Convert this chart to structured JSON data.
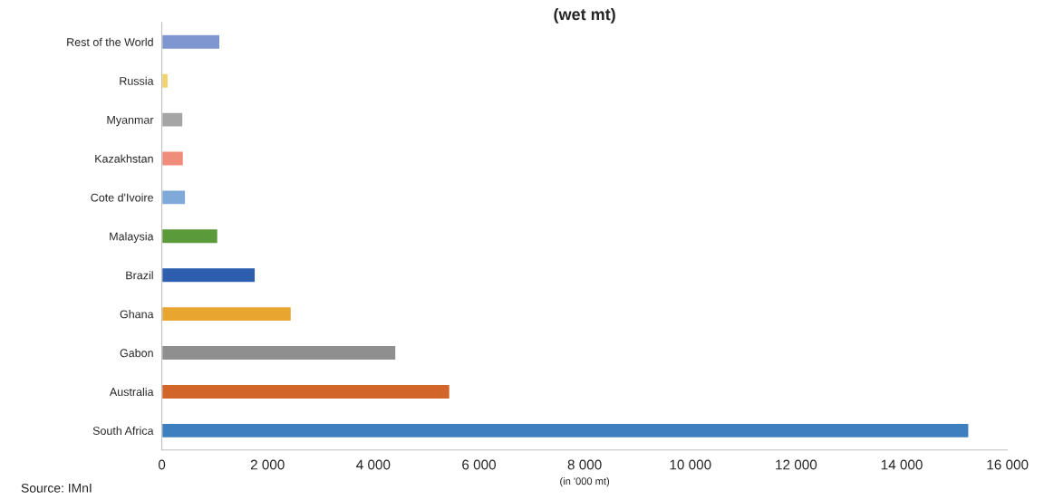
{
  "chart_data": {
    "type": "bar",
    "orientation": "horizontal",
    "title": "(wet mt)",
    "xlabel": "(in '000 mt)",
    "categories": [
      "Rest of the World",
      "Russia",
      "Myanmar",
      "Kazakhstan",
      "Cote d'Ivoire",
      "Malaysia",
      "Brazil",
      "Ghana",
      "Gabon",
      "Australia",
      "South Africa"
    ],
    "values": [
      1100,
      120,
      400,
      410,
      450,
      1060,
      1770,
      2450,
      4430,
      5450,
      15270
    ],
    "colors": [
      "#7f96d0",
      "#f2d36b",
      "#a5a5a5",
      "#f08c7a",
      "#7fa9d9",
      "#5a9a3a",
      "#2e5fae",
      "#e8a530",
      "#8f8f8f",
      "#d2662a",
      "#3e7fc0"
    ],
    "xlim": [
      0,
      16000
    ],
    "xticks": [
      0,
      {
        "value": 2000,
        "label": "2 000"
      },
      {
        "value": 4000,
        "label": "4 000"
      },
      {
        "value": 6000,
        "label": "6 000"
      },
      {
        "value": 8000,
        "label": "8 000"
      },
      {
        "value": 10000,
        "label": "10 000"
      },
      {
        "value": 12000,
        "label": "12 000"
      },
      {
        "value": 14000,
        "label": "14 000"
      },
      {
        "value": 16000,
        "label": "16 000"
      }
    ],
    "grid": false,
    "legend": false,
    "annotations": [
      "Source: IMnI"
    ]
  }
}
